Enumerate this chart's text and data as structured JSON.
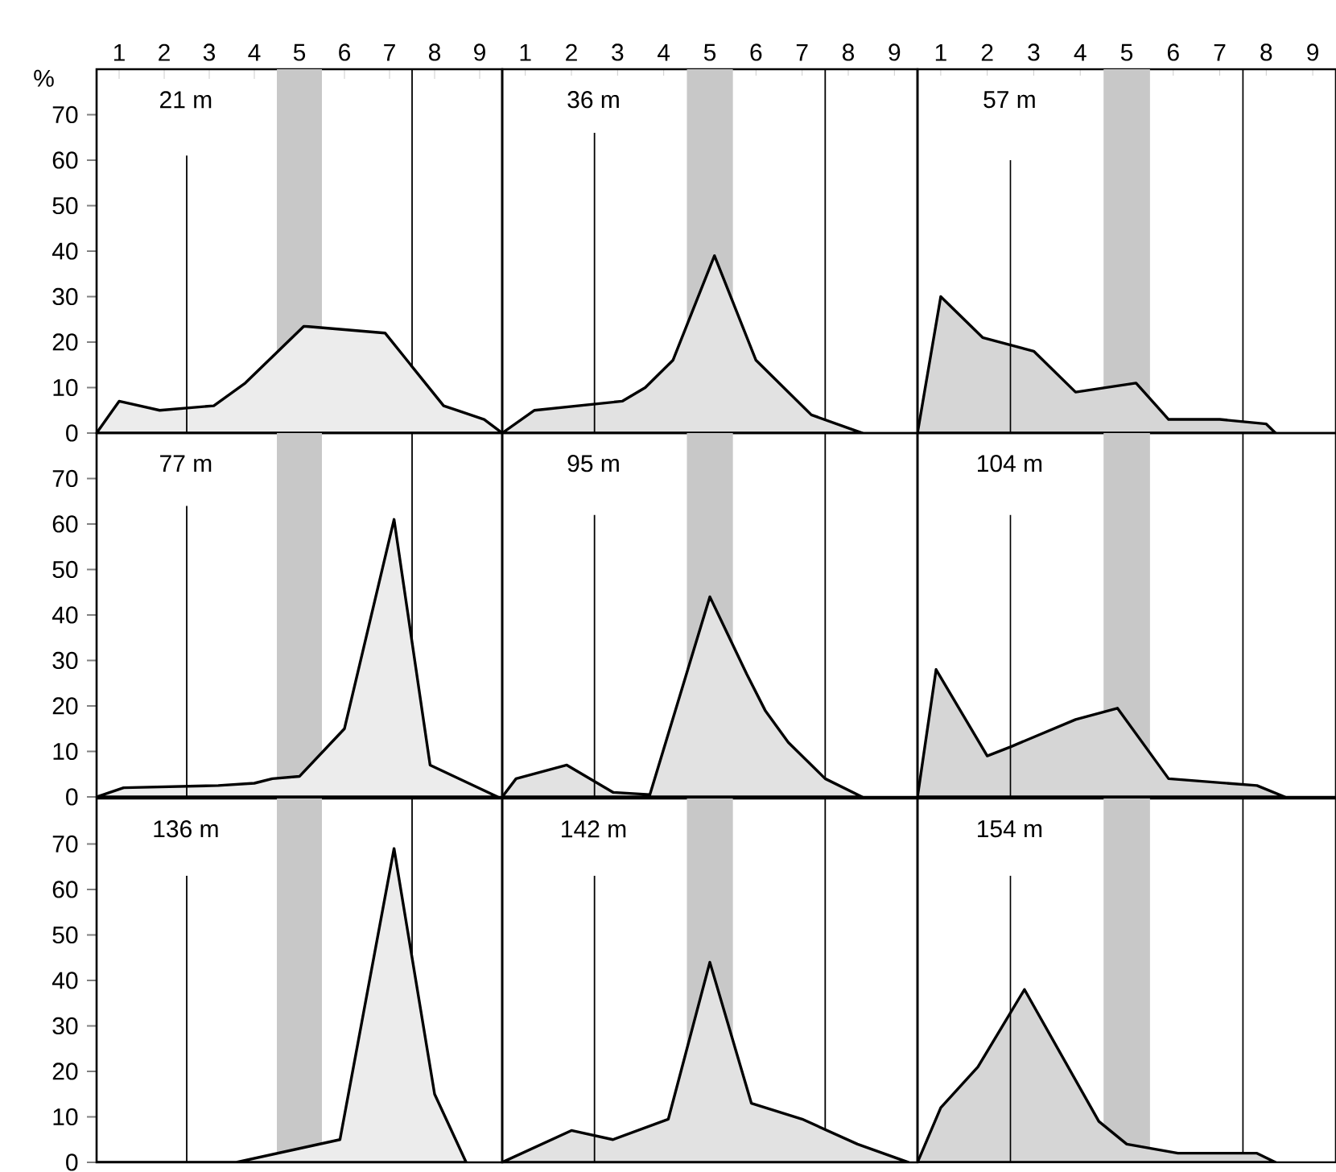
{
  "chart_data": [
    {
      "type": "area",
      "title": "21 m",
      "ylabel": "%",
      "xlim": [
        0.5,
        9.5
      ],
      "ylim": [
        0,
        80
      ],
      "xticks": [
        1,
        2,
        3,
        4,
        5,
        6,
        7,
        8,
        9
      ],
      "yticks": [
        0,
        10,
        20,
        30,
        40,
        50,
        60,
        70
      ],
      "series": [
        {
          "color": "#000000",
          "x": [
            0.5,
            1.0,
            1.9,
            3.1,
            3.8,
            5.1,
            6.9,
            8.2,
            9.1,
            9.5
          ],
          "values": [
            0,
            7,
            5,
            6,
            11,
            23.5,
            22,
            6,
            3,
            0
          ]
        },
        {
          "type": "line",
          "color": "#000000",
          "x": [
            2.5,
            2.5
          ],
          "values": [
            0,
            61
          ]
        }
      ],
      "ref_lines": [
        {
          "axis": "x",
          "value": 7.5,
          "color": "#000000"
        }
      ],
      "bands": [
        {
          "axis": "x",
          "from": 4.5,
          "to": 5.5,
          "color": "#c8c8c8"
        }
      ]
    },
    {
      "type": "area",
      "title": "36 m",
      "xlim": [
        0.5,
        9.5
      ],
      "ylim": [
        0,
        80
      ],
      "xticks": [
        1,
        2,
        3,
        4,
        5,
        6,
        7,
        8,
        9
      ],
      "yticks": [
        0,
        10,
        20,
        30,
        40,
        50,
        60,
        70
      ],
      "tick_labels": "x",
      "series": [
        {
          "color": "#000000",
          "x": [
            0.5,
            1.2,
            3.1,
            3.6,
            4.2,
            5.1,
            6.0,
            7.2,
            8.3
          ],
          "values": [
            0,
            5,
            7,
            10,
            16,
            39,
            16,
            4,
            0
          ]
        },
        {
          "type": "line",
          "color": "#000000",
          "x": [
            2.5,
            2.5
          ],
          "values": [
            0,
            66
          ]
        }
      ],
      "ref_lines": [
        {
          "axis": "x",
          "value": 7.5,
          "color": "#000000"
        }
      ],
      "bands": [
        {
          "axis": "x",
          "from": 4.5,
          "to": 5.5,
          "color": "#c8c8c8"
        }
      ]
    },
    {
      "type": "area",
      "title": "57 m",
      "xlim": [
        0.5,
        9.5
      ],
      "ylim": [
        0,
        80
      ],
      "xticks": [
        1,
        2,
        3,
        4,
        5,
        6,
        7,
        8,
        9
      ],
      "yticks": [
        0,
        10,
        20,
        30,
        40,
        50,
        60,
        70
      ],
      "tick_labels": "x",
      "series": [
        {
          "color": "#000000",
          "x": [
            0.5,
            1.0,
            1.9,
            3.0,
            3.9,
            5.2,
            5.9,
            7.0,
            8.0,
            8.2
          ],
          "values": [
            0,
            30,
            21,
            18,
            9,
            11,
            3,
            3,
            2,
            0
          ]
        },
        {
          "type": "line",
          "color": "#000000",
          "x": [
            2.5,
            2.5
          ],
          "values": [
            0,
            60
          ]
        }
      ],
      "ref_lines": [
        {
          "axis": "x",
          "value": 7.5,
          "color": "#000000"
        }
      ],
      "bands": [
        {
          "axis": "x",
          "from": 4.5,
          "to": 5.5,
          "color": "#c8c8c8"
        }
      ]
    },
    {
      "type": "area",
      "title": "77 m",
      "xlim": [
        0.5,
        9.5
      ],
      "ylim": [
        0,
        80
      ],
      "xticks": [
        1,
        2,
        3,
        4,
        5,
        6,
        7,
        8,
        9
      ],
      "yticks": [
        0,
        10,
        20,
        30,
        40,
        50,
        60,
        70
      ],
      "tick_labels": "y",
      "series": [
        {
          "color": "#000000",
          "x": [
            0.5,
            1.1,
            3.2,
            4.0,
            4.4,
            5.0,
            6.0,
            7.1,
            7.9,
            9.4
          ],
          "values": [
            0,
            2,
            2.5,
            3,
            4,
            4.5,
            15,
            61,
            7,
            0
          ]
        },
        {
          "type": "line",
          "color": "#000000",
          "x": [
            2.5,
            2.5
          ],
          "values": [
            0,
            64
          ]
        }
      ],
      "ref_lines": [
        {
          "axis": "x",
          "value": 7.5,
          "color": "#000000"
        }
      ],
      "bands": [
        {
          "axis": "x",
          "from": 4.5,
          "to": 5.5,
          "color": "#c8c8c8"
        }
      ]
    },
    {
      "type": "area",
      "title": "95 m",
      "xlim": [
        0.5,
        9.5
      ],
      "ylim": [
        0,
        80
      ],
      "xticks": [
        1,
        2,
        3,
        4,
        5,
        6,
        7,
        8,
        9
      ],
      "yticks": [
        0,
        10,
        20,
        30,
        40,
        50,
        60,
        70
      ],
      "tick_labels": false,
      "series": [
        {
          "color": "#000000",
          "x": [
            0.5,
            0.8,
            1.9,
            2.9,
            3.7,
            5.0,
            5.8,
            6.2,
            6.7,
            7.5,
            8.3
          ],
          "values": [
            0,
            4,
            7,
            1,
            0.5,
            44,
            27,
            19,
            12,
            4,
            0
          ]
        },
        {
          "type": "line",
          "color": "#000000",
          "x": [
            2.5,
            2.5
          ],
          "values": [
            0,
            62
          ]
        }
      ],
      "ref_lines": [
        {
          "axis": "x",
          "value": 7.5,
          "color": "#000000"
        }
      ],
      "bands": [
        {
          "axis": "x",
          "from": 4.5,
          "to": 5.5,
          "color": "#c8c8c8"
        }
      ]
    },
    {
      "type": "area",
      "title": "104 m",
      "xlim": [
        0.5,
        9.5
      ],
      "ylim": [
        0,
        80
      ],
      "xticks": [
        1,
        2,
        3,
        4,
        5,
        6,
        7,
        8,
        9
      ],
      "yticks": [
        0,
        10,
        20,
        30,
        40,
        50,
        60,
        70
      ],
      "tick_labels": false,
      "series": [
        {
          "color": "#000000",
          "x": [
            0.5,
            0.9,
            2.0,
            2.5,
            3.9,
            4.8,
            5.9,
            7.8,
            8.4
          ],
          "values": [
            0,
            28,
            9,
            11,
            17,
            19.5,
            4,
            2.5,
            0
          ]
        },
        {
          "type": "line",
          "color": "#000000",
          "x": [
            2.5,
            2.5
          ],
          "values": [
            0,
            62
          ]
        }
      ],
      "ref_lines": [
        {
          "axis": "x",
          "value": 7.5,
          "color": "#000000"
        }
      ],
      "bands": [
        {
          "axis": "x",
          "from": 4.5,
          "to": 5.5,
          "color": "#c8c8c8"
        }
      ]
    },
    {
      "type": "area",
      "title": "136 m",
      "xlim": [
        0.5,
        9.5
      ],
      "ylim": [
        0,
        80
      ],
      "xticks": [
        1,
        2,
        3,
        4,
        5,
        6,
        7,
        8,
        9
      ],
      "yticks": [
        0,
        10,
        20,
        30,
        40,
        50,
        60,
        70
      ],
      "tick_labels": "y",
      "series": [
        {
          "color": "#000000",
          "x": [
            0.5,
            3.6,
            5.9,
            7.1,
            8.0,
            8.7
          ],
          "values": [
            0,
            0,
            5,
            69,
            15,
            0
          ]
        },
        {
          "type": "line",
          "color": "#000000",
          "x": [
            2.5,
            2.5
          ],
          "values": [
            0,
            63
          ]
        }
      ],
      "ref_lines": [
        {
          "axis": "x",
          "value": 7.5,
          "color": "#000000"
        }
      ],
      "bands": [
        {
          "axis": "x",
          "from": 4.5,
          "to": 5.5,
          "color": "#c8c8c8"
        }
      ]
    },
    {
      "type": "area",
      "title": "142 m",
      "xlim": [
        0.5,
        9.5
      ],
      "ylim": [
        0,
        80
      ],
      "xticks": [
        1,
        2,
        3,
        4,
        5,
        6,
        7,
        8,
        9
      ],
      "yticks": [
        0,
        10,
        20,
        30,
        40,
        50,
        60,
        70
      ],
      "tick_labels": false,
      "series": [
        {
          "color": "#000000",
          "x": [
            0.5,
            2.0,
            2.9,
            4.1,
            5.0,
            5.9,
            7.0,
            8.2,
            9.3
          ],
          "values": [
            0,
            7,
            5,
            9.5,
            44,
            13,
            9.5,
            4,
            0
          ]
        },
        {
          "type": "line",
          "color": "#000000",
          "x": [
            2.5,
            2.5
          ],
          "values": [
            0,
            63
          ]
        }
      ],
      "ref_lines": [
        {
          "axis": "x",
          "value": 7.5,
          "color": "#000000"
        }
      ],
      "bands": [
        {
          "axis": "x",
          "from": 4.5,
          "to": 5.5,
          "color": "#c8c8c8"
        }
      ]
    },
    {
      "type": "area",
      "title": "154 m",
      "xlim": [
        0.5,
        9.5
      ],
      "ylim": [
        0,
        80
      ],
      "xticks": [
        1,
        2,
        3,
        4,
        5,
        6,
        7,
        8,
        9
      ],
      "yticks": [
        0,
        10,
        20,
        30,
        40,
        50,
        60,
        70
      ],
      "tick_labels": false,
      "series": [
        {
          "color": "#000000",
          "x": [
            0.5,
            1.0,
            1.8,
            2.8,
            4.4,
            5.0,
            6.1,
            7.2,
            7.8,
            8.2
          ],
          "values": [
            0,
            12,
            21,
            38,
            9,
            4,
            2,
            2,
            2,
            0
          ]
        },
        {
          "type": "line",
          "color": "#000000",
          "x": [
            2.5,
            2.5
          ],
          "values": [
            0,
            63
          ]
        }
      ],
      "ref_lines": [
        {
          "axis": "x",
          "value": 7.5,
          "color": "#000000"
        }
      ],
      "bands": [
        {
          "axis": "x",
          "from": 4.5,
          "to": 5.5,
          "color": "#c8c8c8"
        }
      ]
    }
  ]
}
